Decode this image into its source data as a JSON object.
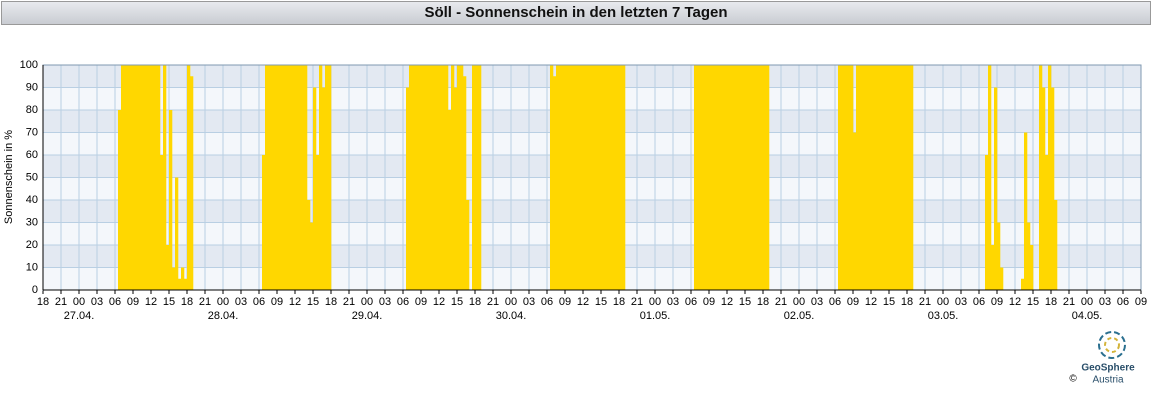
{
  "chart_data": {
    "type": "bar",
    "title": "Söll - Sonnenschein in den letzten 7 Tagen",
    "y_label": "Sonnenschein in %",
    "color": "#ffd700",
    "bar_width": 0.5,
    "x": [
      12.5,
      13,
      13.5,
      14,
      14.5,
      15,
      15.5,
      16,
      16.5,
      17,
      17.5,
      18,
      18.5,
      19,
      19.5,
      20,
      20.5,
      21,
      21.5,
      22,
      22.5,
      23,
      23.5,
      24,
      24.5,
      36.5,
      37,
      37.5,
      38,
      38.5,
      39,
      39.5,
      40,
      40.5,
      41,
      41.5,
      42,
      42.5,
      43,
      43.5,
      44,
      44.5,
      45,
      45.5,
      46,
      46.5,
      47,
      47.5,
      60.5,
      61,
      61.5,
      62,
      62.5,
      63,
      63.5,
      64,
      64.5,
      65,
      65.5,
      66,
      66.5,
      67,
      67.5,
      68,
      68.5,
      69,
      69.5,
      70,
      70.5,
      71.5,
      72,
      72.5,
      84.5,
      85,
      85.5,
      86,
      86.5,
      87,
      87.5,
      88,
      88.5,
      89,
      89.5,
      90,
      90.5,
      91,
      91.5,
      92,
      92.5,
      93,
      93.5,
      94,
      94.5,
      95,
      95.5,
      96,
      96.5,
      108.5,
      109,
      109.5,
      110,
      110.5,
      111,
      111.5,
      112,
      112.5,
      113,
      113.5,
      114,
      114.5,
      115,
      115.5,
      116,
      116.5,
      117,
      117.5,
      118,
      118.5,
      119,
      119.5,
      120,
      120.5,
      132.5,
      133,
      133.5,
      134,
      134.5,
      135,
      135.5,
      136,
      136.5,
      137,
      137.5,
      138,
      138.5,
      139,
      139.5,
      140,
      140.5,
      141,
      141.5,
      142,
      142.5,
      143,
      143.5,
      144,
      144.5,
      157,
      157.5,
      158,
      158.5,
      159,
      159.5,
      163,
      163.5,
      164,
      164.5,
      166,
      166.5,
      167,
      167.5,
      168,
      168.5
    ],
    "values": [
      80,
      100,
      100,
      100,
      100,
      100,
      100,
      100,
      100,
      100,
      100,
      100,
      100,
      100,
      60,
      100,
      20,
      80,
      10,
      50,
      5,
      10,
      5,
      100,
      95,
      60,
      100,
      100,
      100,
      100,
      100,
      100,
      100,
      100,
      100,
      100,
      100,
      100,
      100,
      100,
      40,
      30,
      90,
      60,
      100,
      90,
      100,
      100,
      90,
      100,
      100,
      100,
      100,
      100,
      100,
      100,
      100,
      100,
      100,
      100,
      100,
      100,
      80,
      100,
      90,
      100,
      100,
      95,
      40,
      100,
      100,
      100,
      100,
      95,
      100,
      100,
      100,
      100,
      100,
      100,
      100,
      100,
      100,
      100,
      100,
      100,
      100,
      100,
      100,
      100,
      100,
      100,
      100,
      100,
      100,
      100,
      100,
      100,
      100,
      100,
      100,
      100,
      100,
      100,
      100,
      100,
      100,
      100,
      100,
      100,
      100,
      100,
      100,
      100,
      100,
      100,
      100,
      100,
      100,
      100,
      100,
      100,
      100,
      100,
      100,
      100,
      100,
      70,
      100,
      100,
      100,
      100,
      100,
      100,
      100,
      100,
      100,
      100,
      100,
      100,
      100,
      100,
      100,
      100,
      100,
      100,
      100,
      60,
      100,
      20,
      90,
      30,
      10,
      5,
      70,
      30,
      20,
      100,
      90,
      60,
      100,
      90,
      40
    ],
    "xlim": [
      0,
      183
    ],
    "xticks": [
      {
        "value": 0,
        "label": "18"
      },
      {
        "value": 3,
        "label": "21"
      },
      {
        "value": 6,
        "label": "00"
      },
      {
        "value": 9,
        "label": "03"
      },
      {
        "value": 12,
        "label": "06"
      },
      {
        "value": 15,
        "label": "09"
      },
      {
        "value": 18,
        "label": "12"
      },
      {
        "value": 21,
        "label": "15"
      },
      {
        "value": 24,
        "label": "18"
      },
      {
        "value": 27,
        "label": "21"
      },
      {
        "value": 30,
        "label": "00"
      },
      {
        "value": 33,
        "label": "03"
      },
      {
        "value": 36,
        "label": "06"
      },
      {
        "value": 39,
        "label": "09"
      },
      {
        "value": 42,
        "label": "12"
      },
      {
        "value": 45,
        "label": "15"
      },
      {
        "value": 48,
        "label": "18"
      },
      {
        "value": 51,
        "label": "21"
      },
      {
        "value": 54,
        "label": "00"
      },
      {
        "value": 57,
        "label": "03"
      },
      {
        "value": 60,
        "label": "06"
      },
      {
        "value": 63,
        "label": "09"
      },
      {
        "value": 66,
        "label": "12"
      },
      {
        "value": 69,
        "label": "15"
      },
      {
        "value": 72,
        "label": "18"
      },
      {
        "value": 75,
        "label": "21"
      },
      {
        "value": 78,
        "label": "00"
      },
      {
        "value": 81,
        "label": "03"
      },
      {
        "value": 84,
        "label": "06"
      },
      {
        "value": 87,
        "label": "09"
      },
      {
        "value": 90,
        "label": "12"
      },
      {
        "value": 93,
        "label": "15"
      },
      {
        "value": 96,
        "label": "18"
      },
      {
        "value": 99,
        "label": "21"
      },
      {
        "value": 102,
        "label": "00"
      },
      {
        "value": 105,
        "label": "03"
      },
      {
        "value": 108,
        "label": "06"
      },
      {
        "value": 111,
        "label": "09"
      },
      {
        "value": 114,
        "label": "12"
      },
      {
        "value": 117,
        "label": "15"
      },
      {
        "value": 120,
        "label": "18"
      },
      {
        "value": 123,
        "label": "21"
      },
      {
        "value": 126,
        "label": "00"
      },
      {
        "value": 129,
        "label": "03"
      },
      {
        "value": 132,
        "label": "06"
      },
      {
        "value": 135,
        "label": "09"
      },
      {
        "value": 138,
        "label": "12"
      },
      {
        "value": 141,
        "label": "15"
      },
      {
        "value": 144,
        "label": "18"
      },
      {
        "value": 147,
        "label": "21"
      },
      {
        "value": 150,
        "label": "00"
      },
      {
        "value": 153,
        "label": "03"
      },
      {
        "value": 156,
        "label": "06"
      },
      {
        "value": 159,
        "label": "09"
      },
      {
        "value": 162,
        "label": "12"
      },
      {
        "value": 165,
        "label": "15"
      },
      {
        "value": 168,
        "label": "18"
      },
      {
        "value": 171,
        "label": "21"
      },
      {
        "value": 174,
        "label": "00"
      },
      {
        "value": 177,
        "label": "03"
      },
      {
        "value": 180,
        "label": "06"
      },
      {
        "value": 183,
        "label": "09"
      }
    ],
    "date_labels": [
      {
        "value": 6,
        "label": "27.04."
      },
      {
        "value": 30,
        "label": "28.04."
      },
      {
        "value": 54,
        "label": "29.04."
      },
      {
        "value": 78,
        "label": "30.04."
      },
      {
        "value": 102,
        "label": "01.05."
      },
      {
        "value": 126,
        "label": "02.05."
      },
      {
        "value": 150,
        "label": "03.05."
      },
      {
        "value": 174,
        "label": "04.05."
      }
    ],
    "ylim": [
      0,
      100
    ],
    "yticks": [
      0,
      10,
      20,
      30,
      40,
      50,
      60,
      70,
      80,
      90,
      100
    ],
    "grid": true,
    "logo": {
      "name": "GeoSphere",
      "sub": "Austria",
      "copyright": "©"
    }
  }
}
